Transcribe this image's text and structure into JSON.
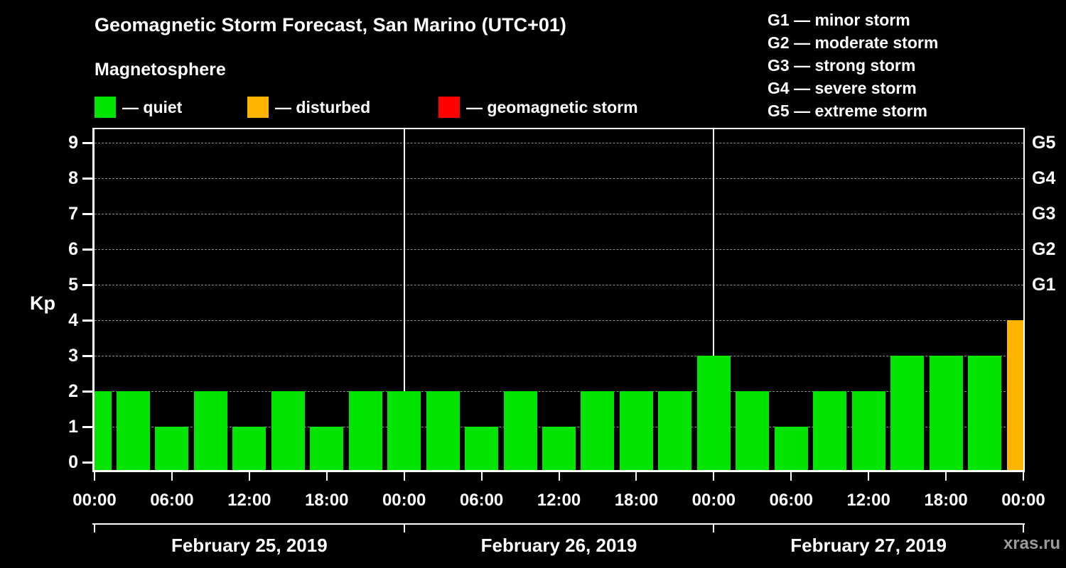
{
  "title": "Geomagnetic Storm Forecast, San Marino (UTC+01)",
  "subtitle": "Magnetosphere",
  "kp_axis_label": "Kp",
  "watermark": "xras.ru",
  "legend": {
    "items": [
      {
        "name": "quiet",
        "label": "— quiet",
        "color": "#00e400"
      },
      {
        "name": "disturbed",
        "label": "— disturbed",
        "color": "#ffb400"
      },
      {
        "name": "storm",
        "label": "— geomagnetic storm",
        "color": "#ff0000"
      }
    ]
  },
  "g_legend": {
    "items": [
      "G1 — minor storm",
      "G2 — moderate storm",
      "G3 — strong storm",
      "G4 — severe storm",
      "G5 — extreme storm"
    ]
  },
  "chart_data": {
    "type": "bar",
    "title": "Geomagnetic Storm Forecast, San Marino (UTC+01)",
    "xlabel": "",
    "ylabel": "Kp",
    "ylim": [
      0,
      9.6
    ],
    "yticks": [
      0,
      1,
      2,
      3,
      4,
      5,
      6,
      7,
      8,
      9
    ],
    "right_axis_labels": [
      {
        "kp": 5,
        "label": "G1"
      },
      {
        "kp": 6,
        "label": "G2"
      },
      {
        "kp": 7,
        "label": "G3"
      },
      {
        "kp": 8,
        "label": "G4"
      },
      {
        "kp": 9,
        "label": "G5"
      }
    ],
    "hours_total": 72,
    "x_ticks": [
      {
        "hour": 0,
        "label": "00:00"
      },
      {
        "hour": 6,
        "label": "06:00"
      },
      {
        "hour": 12,
        "label": "12:00"
      },
      {
        "hour": 18,
        "label": "18:00"
      },
      {
        "hour": 24,
        "label": "00:00"
      },
      {
        "hour": 30,
        "label": "06:00"
      },
      {
        "hour": 36,
        "label": "12:00"
      },
      {
        "hour": 42,
        "label": "18:00"
      },
      {
        "hour": 48,
        "label": "00:00"
      },
      {
        "hour": 54,
        "label": "06:00"
      },
      {
        "hour": 60,
        "label": "12:00"
      },
      {
        "hour": 66,
        "label": "18:00"
      },
      {
        "hour": 72,
        "label": "00:00"
      }
    ],
    "day_dividers_hours": [
      24,
      48
    ],
    "days": [
      {
        "label": "February 25, 2019",
        "start_hour": 0,
        "end_hour": 24
      },
      {
        "label": "February 26, 2019",
        "start_hour": 24,
        "end_hour": 48
      },
      {
        "label": "February 27, 2019",
        "start_hour": 48,
        "end_hour": 72
      }
    ],
    "status_colors": {
      "quiet": "#00e400",
      "disturbed": "#ffb400",
      "storm": "#ff0000"
    },
    "grid_color": "#8f8f8f",
    "bars": [
      {
        "hour": 0,
        "kp": 2,
        "status": "quiet"
      },
      {
        "hour": 3,
        "kp": 2,
        "status": "quiet"
      },
      {
        "hour": 6,
        "kp": 1,
        "status": "quiet"
      },
      {
        "hour": 9,
        "kp": 2,
        "status": "quiet"
      },
      {
        "hour": 12,
        "kp": 1,
        "status": "quiet"
      },
      {
        "hour": 15,
        "kp": 2,
        "status": "quiet"
      },
      {
        "hour": 18,
        "kp": 1,
        "status": "quiet"
      },
      {
        "hour": 21,
        "kp": 2,
        "status": "quiet"
      },
      {
        "hour": 24,
        "kp": 2,
        "status": "quiet"
      },
      {
        "hour": 27,
        "kp": 2,
        "status": "quiet"
      },
      {
        "hour": 30,
        "kp": 1,
        "status": "quiet"
      },
      {
        "hour": 33,
        "kp": 2,
        "status": "quiet"
      },
      {
        "hour": 36,
        "kp": 1,
        "status": "quiet"
      },
      {
        "hour": 39,
        "kp": 2,
        "status": "quiet"
      },
      {
        "hour": 42,
        "kp": 2,
        "status": "quiet"
      },
      {
        "hour": 45,
        "kp": 2,
        "status": "quiet"
      },
      {
        "hour": 48,
        "kp": 3,
        "status": "quiet"
      },
      {
        "hour": 51,
        "kp": 2,
        "status": "quiet"
      },
      {
        "hour": 54,
        "kp": 1,
        "status": "quiet"
      },
      {
        "hour": 57,
        "kp": 2,
        "status": "quiet"
      },
      {
        "hour": 60,
        "kp": 2,
        "status": "quiet"
      },
      {
        "hour": 63,
        "kp": 3,
        "status": "quiet"
      },
      {
        "hour": 66,
        "kp": 3,
        "status": "quiet"
      },
      {
        "hour": 69,
        "kp": 3,
        "status": "quiet"
      },
      {
        "hour": 72,
        "kp": 4,
        "status": "disturbed"
      }
    ]
  }
}
